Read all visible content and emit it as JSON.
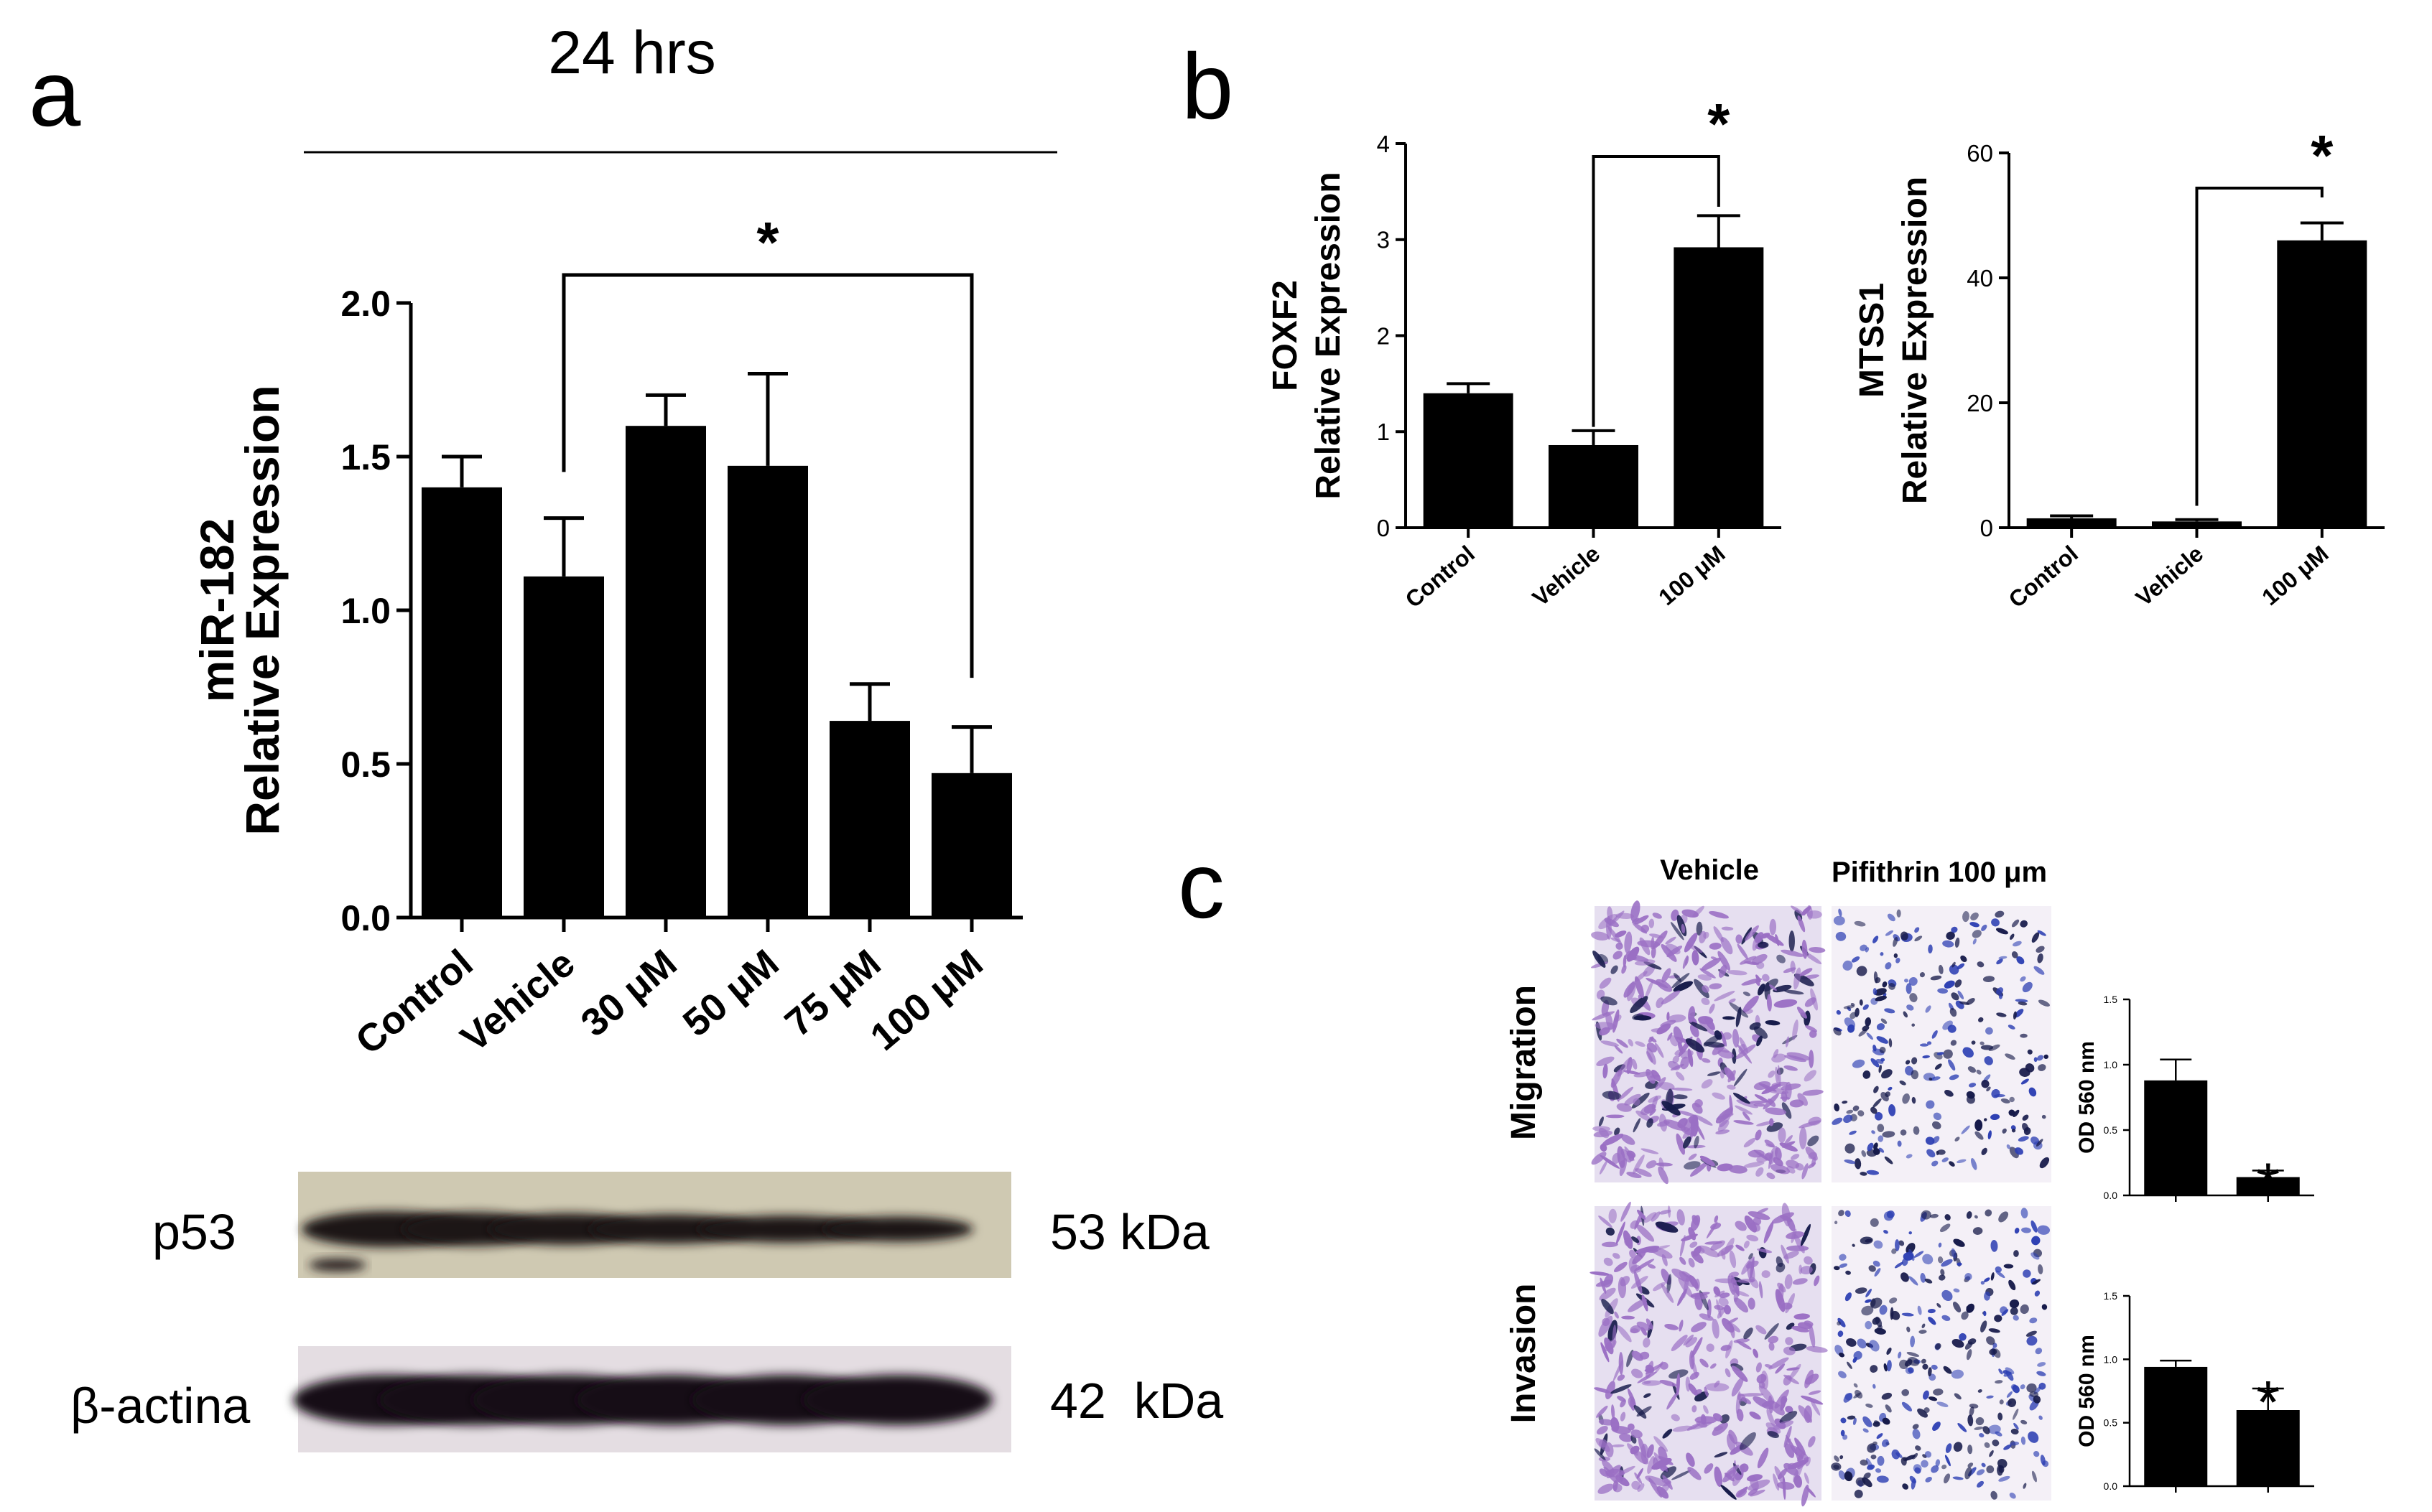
{
  "figure": {
    "panel_labels": [
      "a",
      "b",
      "c"
    ],
    "timepoint": "24 hrs",
    "significance_marker": "*"
  },
  "western_blot": {
    "rows": [
      {
        "protein": "p53",
        "size": "53 kDa"
      },
      {
        "protein": "β-actina",
        "size": "42  kDa"
      }
    ]
  },
  "micrographs": {
    "columns": [
      "Vehicle",
      "Pifithrin 100 μm"
    ],
    "rows": [
      "Migration",
      "Invasion"
    ],
    "colors": {
      "vehicle_stain": "#9a6fc4",
      "pifithrin_stain": "#2d3fb3",
      "background": "#f4f0f7"
    }
  },
  "chart_data": [
    {
      "id": "a",
      "type": "bar",
      "categories": [
        "Control",
        "Vehicle",
        "30 μM",
        "50 μM",
        "75 μM",
        "100 μM"
      ],
      "values": [
        1.4,
        1.11,
        1.6,
        1.47,
        0.64,
        0.47
      ],
      "errors": [
        0.1,
        0.19,
        0.1,
        0.3,
        0.12,
        0.15
      ],
      "ylabel": [
        "miR-182",
        "Relative Expression"
      ],
      "ylim": [
        0,
        2.0
      ],
      "yticks": [
        "0.0",
        "0.5",
        "1.0",
        "1.5",
        "2.0"
      ],
      "significance": {
        "from": "Vehicle",
        "to": "100 μM",
        "label": "*"
      },
      "color": "#000000"
    },
    {
      "id": "b-foxf2",
      "type": "bar",
      "categories": [
        "Control",
        "Vehicle",
        "100 μM"
      ],
      "values": [
        1.4,
        0.86,
        2.92
      ],
      "errors": [
        0.1,
        0.15,
        0.33
      ],
      "ylabel": [
        "FOXF2",
        "Relative Expression"
      ],
      "ylim": [
        0,
        4
      ],
      "yticks": [
        "0",
        "1",
        "2",
        "3",
        "4"
      ],
      "significance": {
        "from": "Vehicle",
        "to": "100 μM",
        "label": "*"
      },
      "color": "#000000"
    },
    {
      "id": "b-mtss1",
      "type": "bar",
      "categories": [
        "Control",
        "Vehicle",
        "100 μM"
      ],
      "values": [
        1.5,
        1.0,
        46.0
      ],
      "errors": [
        0.4,
        0.3,
        2.8
      ],
      "ylabel": [
        "MTSS1",
        "Relative Expression"
      ],
      "ylim": [
        0,
        60
      ],
      "yticks": [
        "0",
        "20",
        "40",
        "60"
      ],
      "significance": {
        "from": "Vehicle",
        "to": "100 μM",
        "label": "*"
      },
      "color": "#000000"
    },
    {
      "id": "c-migration",
      "type": "bar",
      "categories": [
        "Vehicle",
        "Pifithrin 100 μm"
      ],
      "values": [
        0.88,
        0.14
      ],
      "errors": [
        0.16,
        0.05
      ],
      "ylabel": [
        "OD  560 nm"
      ],
      "ylim": [
        0,
        1.5
      ],
      "yticks": [
        "0.0",
        "0.5",
        "1.0",
        "1.5"
      ],
      "significance": {
        "bar": "Pifithrin 100 μm",
        "label": "*"
      },
      "color": "#000000"
    },
    {
      "id": "c-invasion",
      "type": "bar",
      "categories": [
        "Vehicle",
        "Pifithrin 100 μm"
      ],
      "values": [
        0.94,
        0.6
      ],
      "errors": [
        0.05,
        0.17
      ],
      "ylabel": [
        "OD  560 nm"
      ],
      "ylim": [
        0,
        1.5
      ],
      "yticks": [
        "0.0",
        "0.5",
        "1.0",
        "1.5"
      ],
      "significance": {
        "bar": "Pifithrin 100 μm",
        "label": "*"
      },
      "color": "#000000"
    }
  ]
}
